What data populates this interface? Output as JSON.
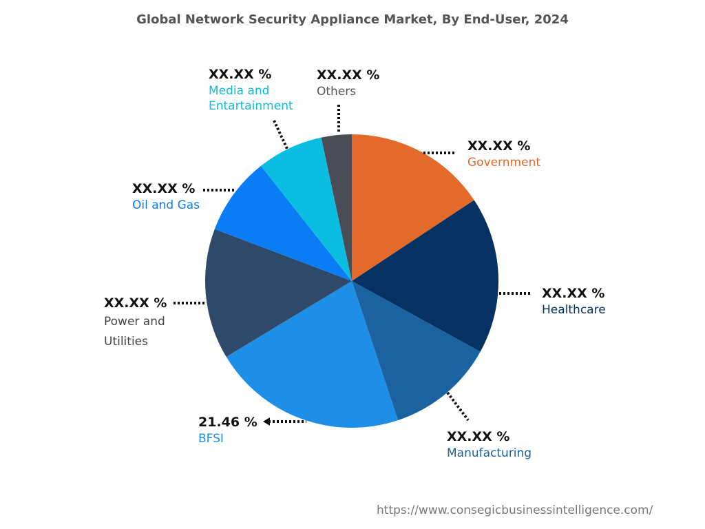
{
  "chart_data": {
    "type": "pie",
    "title": "Global Network Security Appliance Market, By End-User, 2024",
    "start_angle_deg": 0,
    "direction": "clockwise",
    "slices": [
      {
        "name": "Government",
        "label": "XX.XX %",
        "value": 15.7,
        "color": "#E46A2A"
      },
      {
        "name": "Healthcare",
        "label": "XX.XX %",
        "value": 17.3,
        "color": "#053263"
      },
      {
        "name": "Manufacturing",
        "label": "XX.XX %",
        "value": 11.9,
        "color": "#1A62A0"
      },
      {
        "name": "BFSI",
        "label": "21.46 %",
        "value": 21.46,
        "color": "#1E8EE6"
      },
      {
        "name": "Power and Utilities",
        "label": "XX.XX %",
        "value": 14.4,
        "color": "#2E4A68"
      },
      {
        "name": "Oil and Gas",
        "label": "XX.XX %",
        "value": 8.6,
        "color": "#0A7DF5"
      },
      {
        "name": "Media and Entartainment",
        "label": "XX.XX %",
        "value": 7.3,
        "color": "#0BBDE0"
      },
      {
        "name": "Others",
        "label": "XX.XX %",
        "value": 3.34,
        "color": "#4A4D55"
      }
    ],
    "label_colors": [
      "#E46A2A",
      "#053263",
      "#1A62A0",
      "#1E8EE6",
      "#444444",
      "#0A7DF5",
      "#0BBDE0",
      "#555555"
    ]
  },
  "source_url": "https://www.consegicbusinessintelligence.com/"
}
